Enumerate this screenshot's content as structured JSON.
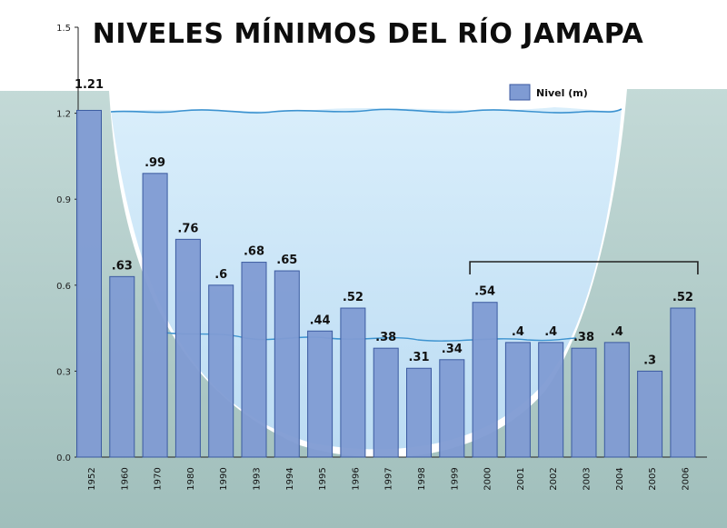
{
  "chart_data": {
    "type": "bar",
    "title": "NIVELES MÍNIMOS DEL RÍO JAMAPA",
    "categories": [
      "1952",
      "1960",
      "1970",
      "1980",
      "1990",
      "1993",
      "1994",
      "1995",
      "1996",
      "1997",
      "1998",
      "1999",
      "2000",
      "2001",
      "2002",
      "2003",
      "2004",
      "2005",
      "2006"
    ],
    "series": [
      {
        "name": "Nivel (m)",
        "values": [
          1.21,
          0.63,
          0.99,
          0.76,
          0.6,
          0.68,
          0.65,
          0.44,
          0.52,
          0.38,
          0.31,
          0.34,
          0.54,
          0.4,
          0.4,
          0.38,
          0.4,
          0.3,
          0.52
        ],
        "data_labels": [
          "1.21",
          ".63",
          ".99",
          ".76",
          ".6",
          ".68",
          ".65",
          ".44",
          ".52",
          ".38",
          ".31",
          ".34",
          ".54",
          ".4",
          ".4",
          ".38",
          ".4",
          ".3",
          ".52"
        ]
      }
    ],
    "y_ticks": [
      "0.0",
      "0.3",
      "0.6",
      "0.9",
      "1.2",
      "1.5"
    ],
    "ylim": [
      0,
      1.5
    ],
    "legend": "top-right",
    "grid": false,
    "highlighted_range": [
      "2000",
      "2006"
    ],
    "colors": {
      "bar_fill": "#7f9bd3",
      "bar_stroke": "#3b5aa0",
      "water": "#cfe7f8",
      "water_line": "#3d93d0",
      "bank": "#a9c7c3",
      "first_label": "#1f4fa0",
      "axis": "#222222"
    }
  }
}
